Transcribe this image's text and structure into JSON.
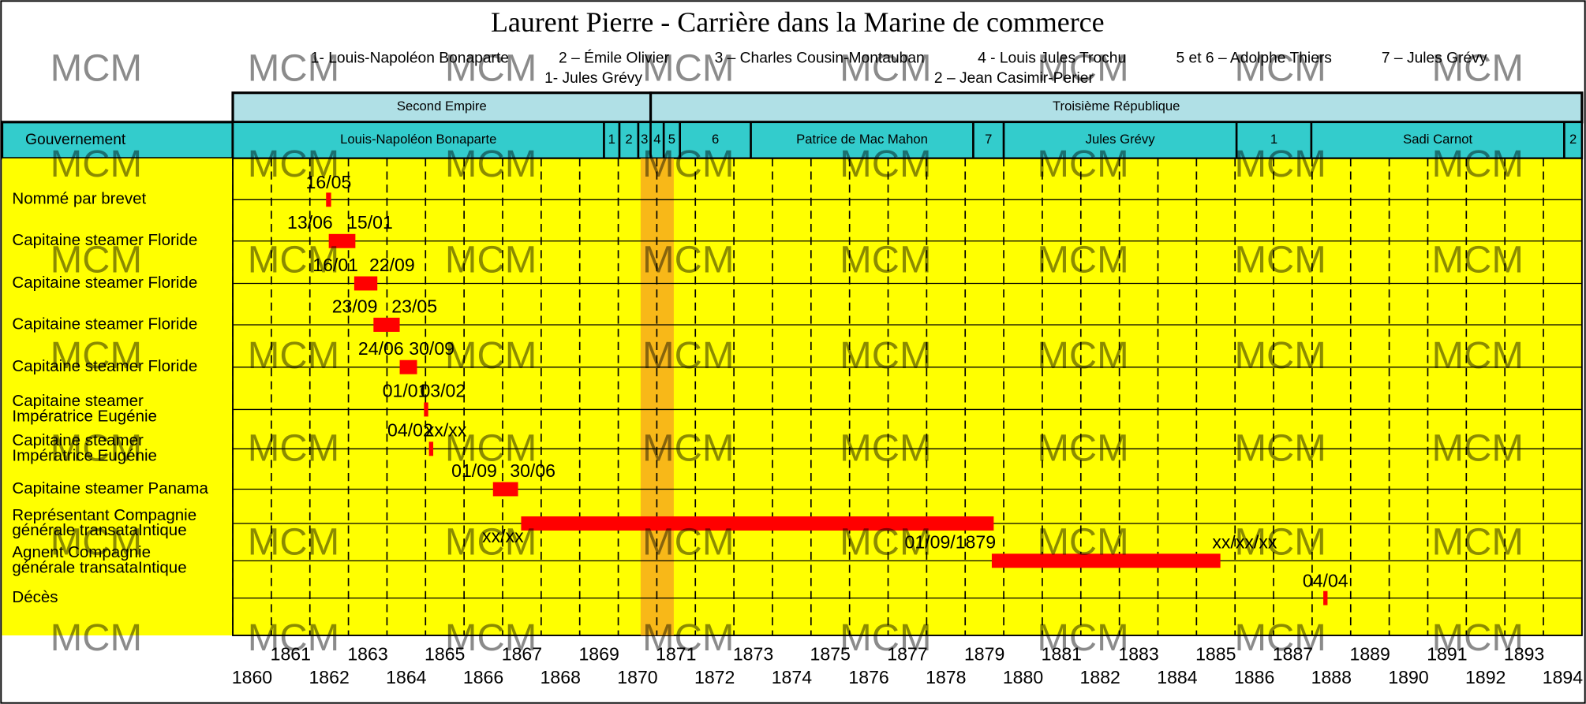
{
  "chart_data": {
    "type": "timeline",
    "title": "Laurent Pierre - Carrière dans la Marine de commerce",
    "legend_lines": [
      [
        "1- Louis-Napoléon Bonaparte",
        "2 – Émile Olivier",
        "3 – Charles Cousin-Montauban",
        "4 - Louis Jules Trochu",
        "5 et 6 – Adolphe Thiers",
        "7 – Jules Grévy"
      ],
      [
        "1- Jules Grévy",
        "2 – Jean Casimir-Perier"
      ]
    ],
    "watermark": "MCM",
    "government_label": "Gouvernement",
    "regimes": [
      {
        "name": "Second Empire",
        "start": 1860,
        "end": 1870.84
      },
      {
        "name": "Troisième République",
        "start": 1870.84,
        "end": 1895
      }
    ],
    "governments": [
      {
        "name": "Louis-Napoléon Bonaparte",
        "start": 1860,
        "end": 1869.63
      },
      {
        "name": "1",
        "start": 1869.63,
        "end": 1870.03
      },
      {
        "name": "2",
        "start": 1870.03,
        "end": 1870.52
      },
      {
        "name": "3",
        "start": 1870.52,
        "end": 1870.84
      },
      {
        "name": "4",
        "start": 1870.84,
        "end": 1871.18
      },
      {
        "name": "5",
        "start": 1871.18,
        "end": 1871.6
      },
      {
        "name": "6",
        "start": 1871.6,
        "end": 1873.44
      },
      {
        "name": "Patrice de Mac Mahon",
        "start": 1873.44,
        "end": 1879.21
      },
      {
        "name": "7",
        "start": 1879.21,
        "end": 1880.0
      },
      {
        "name": "Jules Grévy",
        "start": 1880.0,
        "end": 1886.04
      },
      {
        "name": "1",
        "start": 1886.04,
        "end": 1887.98
      },
      {
        "name": "Sadi Carnot",
        "start": 1887.98,
        "end": 1894.54
      },
      {
        "name": "2",
        "start": 1894.54,
        "end": 1895
      }
    ],
    "rows": [
      {
        "label": [
          "Nommé par brevet"
        ],
        "start": 1862.42,
        "end": 1862.55,
        "start_label": "16/05"
      },
      {
        "label": [
          "Capitaine steamer Floride"
        ],
        "start": 1862.49,
        "end": 1863.18,
        "start_label": "13/06",
        "end_label": "15/01"
      },
      {
        "label": [
          "Capitaine steamer Floride"
        ],
        "start": 1863.15,
        "end": 1863.75,
        "start_label": "16/01",
        "end_label": "22/09"
      },
      {
        "label": [
          "Capitaine steamer Floride"
        ],
        "start": 1863.65,
        "end": 1864.33,
        "start_label": "23/09",
        "end_label": "23/05"
      },
      {
        "label": [
          "Capitaine steamer Floride"
        ],
        "start": 1864.33,
        "end": 1864.78,
        "start_label": "24/06",
        "end_label": "30/09"
      },
      {
        "label": [
          "Capitaine steamer",
          "Impératrice Eugénie"
        ],
        "start": 1864.96,
        "end": 1865.07,
        "start_label": "01/01",
        "end_label": "03/02"
      },
      {
        "label": [
          "Capitaine steamer",
          "Impératrice Eugénie"
        ],
        "start": 1865.09,
        "end": 1865.2,
        "start_label": "04/02",
        "end_label": "xx/xx"
      },
      {
        "label": [
          "Capitaine steamer Panama"
        ],
        "start": 1866.75,
        "end": 1867.4,
        "start_label": "01/09",
        "end_label": "30/06"
      },
      {
        "label": [
          "Représentant Compagnie",
          "générale transataIntique"
        ],
        "start": 1867.48,
        "end": 1879.74,
        "start_label": "xx/xx"
      },
      {
        "label": [
          "Agnent Compagnie",
          "générale transataIntique"
        ],
        "start": 1879.69,
        "end": 1885.62,
        "start_label": "01/09/1879",
        "end_label": "xx/xx/xx"
      },
      {
        "label": [
          "Décès"
        ],
        "start": 1888.29,
        "end": 1888.4,
        "start_label": "04/04"
      }
    ],
    "highlight": [
      1870.58,
      1871.44
    ],
    "xlim": [
      1860,
      1895
    ],
    "xticks": [
      1860,
      1861,
      1862,
      1863,
      1864,
      1865,
      1866,
      1867,
      1868,
      1869,
      1870,
      1871,
      1872,
      1873,
      1874,
      1875,
      1876,
      1877,
      1878,
      1879,
      1880,
      1881,
      1882,
      1883,
      1884,
      1885,
      1886,
      1887,
      1888,
      1889,
      1890,
      1891,
      1892,
      1893,
      1894
    ],
    "grid": true,
    "colors": {
      "background": "#ffff00",
      "bar": "#ff0000",
      "government": "#33cccc",
      "regime": "#b0e0e6",
      "highlight": "#f5a020",
      "watermark": "#f07070"
    }
  }
}
